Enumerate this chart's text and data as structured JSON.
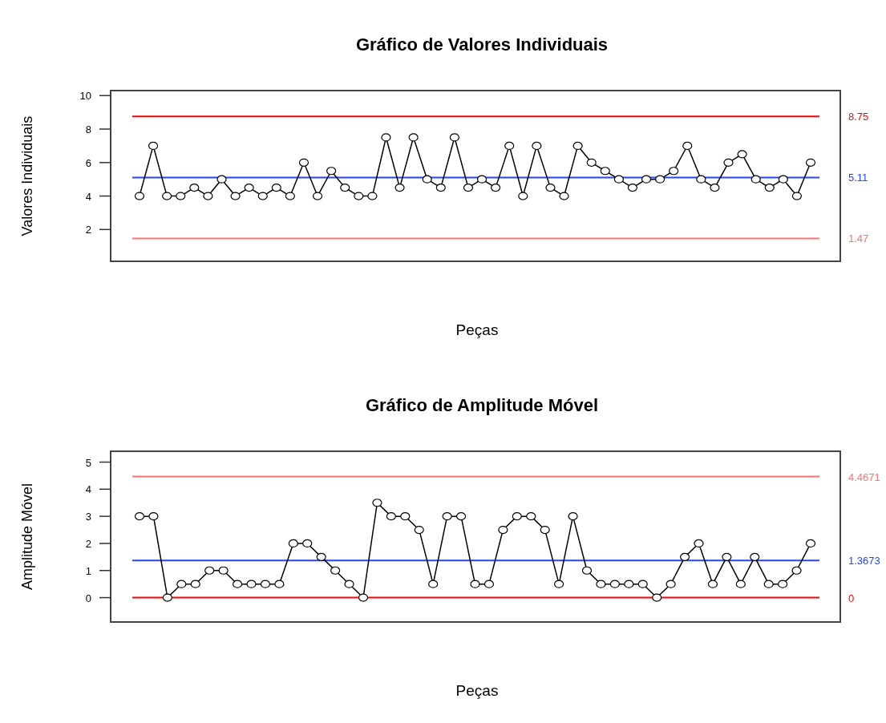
{
  "chart_data": [
    {
      "type": "line",
      "title": "Gráfico de Valores Individuais",
      "xlabel": "Peças",
      "ylabel": "Valores Individuais",
      "categories": [
        null,
        null,
        null,
        null,
        null,
        null,
        null,
        null,
        null,
        null,
        null,
        null,
        null,
        null,
        null,
        null,
        null,
        null,
        null,
        null,
        null,
        null,
        null,
        null,
        null,
        null,
        null,
        null,
        null,
        null,
        null,
        null,
        null,
        null,
        null,
        null,
        null,
        null,
        null,
        null,
        null,
        null,
        null,
        null,
        null,
        null,
        null,
        null,
        null,
        null
      ],
      "series": [
        {
          "color": "#000000",
          "values": [
            4,
            7,
            4,
            4,
            4.5,
            4,
            5,
            4,
            4.5,
            4,
            4.5,
            4,
            6,
            4,
            5.5,
            4.5,
            4,
            4,
            7.5,
            4.5,
            7.5,
            5,
            4.5,
            7.5,
            4.5,
            5,
            4.5,
            7,
            4,
            7,
            4.5,
            4,
            7,
            6,
            5.5,
            5,
            4.5,
            5,
            5,
            5.5,
            7,
            5,
            4.5,
            6,
            6.5,
            5,
            4.5,
            5,
            4,
            6
          ]
        }
      ],
      "ylim": [
        0.1,
        10.3
      ],
      "yticks": [
        2,
        4,
        6,
        8,
        10
      ],
      "grid": false,
      "marker": "circle",
      "line_style": "solid",
      "ref_lines": [
        {
          "axis": "y",
          "value": 8.75,
          "label": "8.75",
          "color": "#ff0000"
        },
        {
          "axis": "y",
          "value": 5.11,
          "label": "5.11",
          "color": "#2244ff"
        },
        {
          "axis": "y",
          "value": 1.47,
          "label": "1.47",
          "color": "#ff7070"
        }
      ]
    },
    {
      "type": "line",
      "title": "Gráfico de Amplitude Móvel",
      "xlabel": "Peças",
      "ylabel": "Amplitude Móvel",
      "categories": [
        null,
        null,
        null,
        null,
        null,
        null,
        null,
        null,
        null,
        null,
        null,
        null,
        null,
        null,
        null,
        null,
        null,
        null,
        null,
        null,
        null,
        null,
        null,
        null,
        null,
        null,
        null,
        null,
        null,
        null,
        null,
        null,
        null,
        null,
        null,
        null,
        null,
        null,
        null,
        null,
        null,
        null,
        null,
        null,
        null,
        null,
        null,
        null,
        null
      ],
      "series": [
        {
          "color": "#000000",
          "values": [
            3,
            3,
            0,
            0.5,
            0.5,
            1,
            1,
            0.5,
            0.5,
            0.5,
            0.5,
            2,
            2,
            1.5,
            1,
            0.5,
            0,
            3.5,
            3,
            3,
            2.5,
            0.5,
            3,
            3,
            0.5,
            0.5,
            2.5,
            3,
            3,
            2.5,
            0.5,
            3,
            1,
            0.5,
            0.5,
            0.5,
            0.5,
            0,
            0.5,
            1.5,
            2,
            0.5,
            1.5,
            0.5,
            1.5,
            0.5,
            0.5,
            1,
            2
          ]
        }
      ],
      "ylim": [
        -0.9,
        5.4
      ],
      "yticks": [
        0,
        1,
        2,
        3,
        4,
        5
      ],
      "grid": false,
      "marker": "circle",
      "line_style": "solid",
      "ref_lines": [
        {
          "axis": "y",
          "value": 4.4671,
          "label": "4.4671",
          "color": "#ff7070"
        },
        {
          "axis": "y",
          "value": 1.3673,
          "label": "1.3673",
          "color": "#2244ff"
        },
        {
          "axis": "y",
          "value": 0,
          "label": "0",
          "color": "#ff0000"
        }
      ]
    }
  ]
}
